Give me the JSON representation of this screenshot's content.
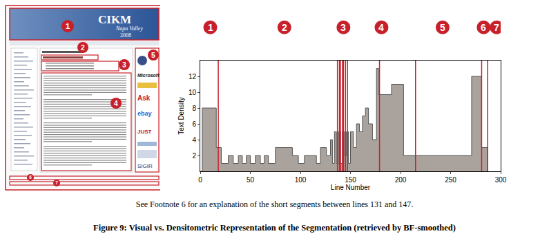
{
  "chart_data": {
    "type": "step",
    "x_label": "Line Number",
    "y_label": "Text Density",
    "x": [
      0,
      2,
      16,
      21,
      28,
      33,
      38,
      42,
      46,
      50,
      55,
      60,
      64,
      68,
      75,
      92,
      98,
      104,
      110,
      116,
      120,
      126,
      130,
      132,
      134,
      136,
      138,
      140,
      142,
      144,
      146,
      148,
      150,
      153,
      156,
      159,
      162,
      165,
      168,
      172,
      176,
      178,
      191,
      203,
      271,
      281,
      287
    ],
    "values": [
      0,
      8,
      3,
      1,
      2,
      1,
      2,
      1,
      2,
      1,
      2,
      1,
      2,
      1,
      3,
      2,
      1,
      2,
      2,
      1,
      3,
      2,
      4,
      1,
      5,
      1,
      5,
      1,
      5,
      2,
      5,
      1,
      5,
      3,
      6,
      5,
      7,
      8,
      6,
      4,
      13,
      9.7,
      11,
      2,
      12,
      3,
      0
    ],
    "color": "#aaa39d",
    "xlim": [
      0,
      300
    ],
    "ylim": [
      0,
      14
    ],
    "xticks": [
      0,
      50,
      100,
      150,
      200,
      250,
      300
    ],
    "yticks": [
      2,
      4,
      6,
      8,
      10,
      12
    ],
    "grid": false,
    "boundaries": [
      18,
      137,
      139,
      140,
      142,
      143,
      145,
      147,
      179,
      215,
      281,
      287
    ],
    "annotations": [
      {
        "text": "1",
        "x": 10
      },
      {
        "text": "2",
        "x": 84
      },
      {
        "text": "3",
        "x": 143
      },
      {
        "text": "4",
        "x": 181
      },
      {
        "text": "5",
        "x": 242
      },
      {
        "text": "6",
        "x": 283
      },
      {
        "text": "7",
        "x": 296
      }
    ]
  },
  "screenshot": {
    "header": [
      "CIKM",
      "Napa Valley",
      "2008"
    ],
    "sponsors": [
      "Microsoft",
      "Ask",
      "ebay",
      "JUST",
      "SIGIR"
    ],
    "markers": [
      "1",
      "2",
      "3",
      "4",
      "5",
      "6",
      "7"
    ]
  },
  "caption": {
    "note": "See Footnote 6 for an explanation of the short segments between lines 131 and 147.",
    "figure": "Figure 9: Visual vs. Densitometric Representation of the Segmentation (retrieved by BF-smoothed)"
  }
}
